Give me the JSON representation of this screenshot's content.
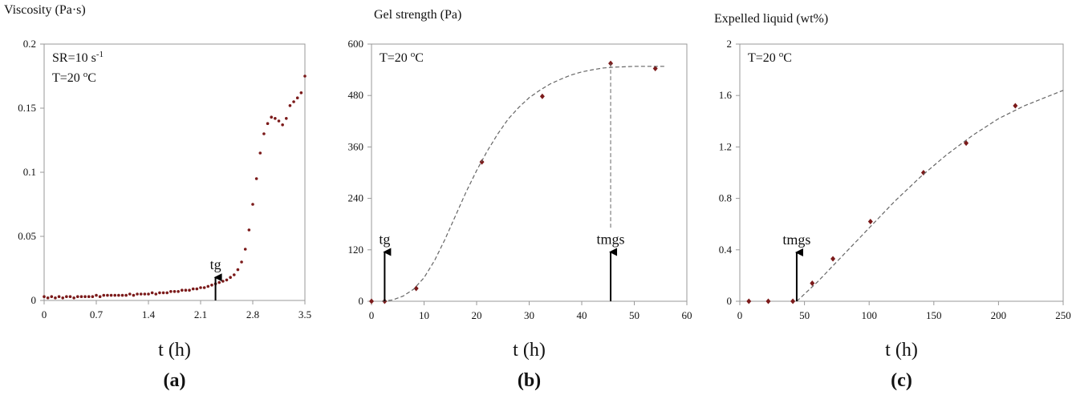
{
  "chart_data": [
    {
      "type": "scatter",
      "title": "Viscosity (Pa·s)",
      "annotations": [
        [
          {
            "text": "SR=10 s"
          },
          {
            "text": "-1",
            "sup": true
          }
        ],
        [
          {
            "text": "T=20 "
          },
          {
            "text": "o",
            "sup": true
          },
          {
            "text": "C"
          }
        ]
      ],
      "series": [
        {
          "color": "#7b1a1a",
          "marker": "dot",
          "x": [
            0,
            0.05,
            0.1,
            0.15,
            0.2,
            0.25,
            0.3,
            0.35,
            0.4,
            0.45,
            0.5,
            0.55,
            0.6,
            0.65,
            0.7,
            0.75,
            0.8,
            0.85,
            0.9,
            0.95,
            1.0,
            1.05,
            1.1,
            1.15,
            1.2,
            1.25,
            1.3,
            1.35,
            1.4,
            1.45,
            1.5,
            1.55,
            1.6,
            1.65,
            1.7,
            1.75,
            1.8,
            1.85,
            1.9,
            1.95,
            2.0,
            2.05,
            2.1,
            2.15,
            2.2,
            2.25,
            2.3,
            2.35,
            2.4,
            2.45,
            2.5,
            2.55,
            2.6,
            2.65,
            2.7,
            2.75,
            2.8,
            2.85,
            2.9,
            2.95,
            3.0,
            3.05,
            3.1,
            3.15,
            3.2,
            3.25,
            3.3,
            3.35,
            3.4,
            3.45,
            3.5
          ],
          "values": [
            0.003,
            0.002,
            0.003,
            0.002,
            0.003,
            0.002,
            0.003,
            0.003,
            0.002,
            0.003,
            0.003,
            0.003,
            0.003,
            0.003,
            0.004,
            0.003,
            0.004,
            0.004,
            0.004,
            0.004,
            0.004,
            0.004,
            0.004,
            0.005,
            0.004,
            0.005,
            0.005,
            0.005,
            0.005,
            0.006,
            0.005,
            0.006,
            0.006,
            0.006,
            0.007,
            0.007,
            0.007,
            0.008,
            0.008,
            0.008,
            0.009,
            0.009,
            0.01,
            0.01,
            0.011,
            0.012,
            0.013,
            0.014,
            0.015,
            0.016,
            0.018,
            0.02,
            0.024,
            0.03,
            0.04,
            0.055,
            0.075,
            0.095,
            0.115,
            0.13,
            0.138,
            0.143,
            0.142,
            0.14,
            0.137,
            0.142,
            0.152,
            0.155,
            0.158,
            0.162,
            0.175
          ]
        }
      ],
      "arrows": [
        {
          "x": 2.3,
          "y": 0.018,
          "label": "tg"
        }
      ],
      "xlim": [
        0,
        3.5
      ],
      "xticks": [
        0,
        0.7,
        1.4,
        2.1,
        2.8,
        3.5
      ],
      "ylim": [
        0,
        0.2
      ],
      "yticks": [
        0,
        0.05,
        0.1,
        0.15,
        0.2
      ],
      "x_label": "t (h)",
      "caption": "(a)"
    },
    {
      "type": "scatter",
      "title": "Gel strength (Pa)",
      "annotations": [
        [
          {
            "text": "T=20 "
          },
          {
            "text": "o",
            "sup": true
          },
          {
            "text": "C"
          }
        ]
      ],
      "series": [
        {
          "color": "#7b1a1a",
          "marker": "diamond",
          "x": [
            0,
            2.5,
            8.5,
            21,
            32.5,
            45.5,
            54
          ],
          "values": [
            0,
            0,
            30,
            325,
            478,
            555,
            543
          ]
        },
        {
          "color": "#666666",
          "line_style": "dashed",
          "x": [
            2,
            4,
            6,
            8,
            10,
            12,
            14,
            16,
            18,
            20,
            22,
            24,
            26,
            28,
            30,
            32,
            34,
            36,
            38,
            40,
            42,
            44,
            46,
            48,
            50,
            52,
            54,
            56
          ],
          "values": [
            0,
            3,
            12,
            28,
            55,
            95,
            145,
            200,
            255,
            305,
            350,
            390,
            425,
            452,
            475,
            492,
            507,
            518,
            528,
            535,
            540,
            544,
            546,
            547,
            548,
            548,
            548,
            548
          ]
        }
      ],
      "arrows": [
        {
          "x": 2.5,
          "y": 115,
          "label": "tg"
        },
        {
          "x": 45.5,
          "y": 115,
          "label": "tmgs",
          "guide_top": 555
        }
      ],
      "xlim": [
        0,
        60
      ],
      "xticks": [
        0,
        10,
        20,
        30,
        40,
        50,
        60
      ],
      "ylim": [
        0,
        600
      ],
      "yticks": [
        0,
        120,
        240,
        360,
        480,
        600
      ],
      "x_label": "t (h)",
      "caption": "(b)"
    },
    {
      "type": "scatter",
      "title": "Expelled liquid (wt%)",
      "annotations": [
        [
          {
            "text": "T=20 "
          },
          {
            "text": "o",
            "sup": true
          },
          {
            "text": "C"
          }
        ]
      ],
      "series": [
        {
          "color": "#7b1a1a",
          "marker": "diamond",
          "x": [
            7,
            22,
            41,
            56,
            72,
            101,
            142,
            175,
            213
          ],
          "values": [
            0,
            0,
            0,
            0.14,
            0.33,
            0.62,
            1.0,
            1.23,
            1.52
          ]
        },
        {
          "color": "#666666",
          "line_style": "dashed",
          "x": [
            44,
            60,
            80,
            100,
            120,
            140,
            160,
            180,
            200,
            220,
            240,
            250
          ],
          "values": [
            0,
            0.15,
            0.36,
            0.57,
            0.78,
            0.97,
            1.14,
            1.29,
            1.42,
            1.52,
            1.6,
            1.64
          ]
        }
      ],
      "arrows": [
        {
          "x": 44,
          "y": 0.38,
          "label": "tmgs"
        }
      ],
      "xlim": [
        0,
        250
      ],
      "xticks": [
        0,
        50,
        100,
        150,
        200,
        250
      ],
      "ylim": [
        0,
        2
      ],
      "yticks": [
        0,
        0.4,
        0.8,
        1.2,
        1.6,
        2
      ],
      "x_label": "t (h)",
      "caption": "(c)"
    }
  ]
}
